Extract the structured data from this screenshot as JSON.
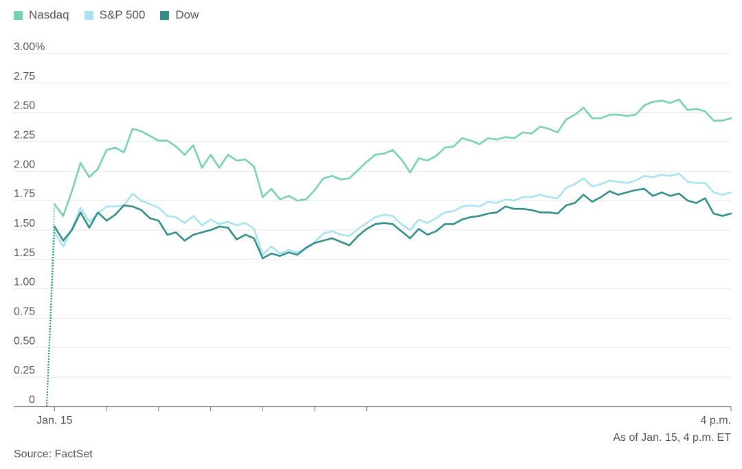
{
  "legend": [
    {
      "label": "Nasdaq",
      "color": "#78d2b2"
    },
    {
      "label": "S&P 500",
      "color": "#a8e2f3"
    },
    {
      "label": "Dow",
      "color": "#338e89"
    }
  ],
  "note": "As of Jan. 15, 4 p.m. ET",
  "source": "Source: FactSet",
  "chart_data": {
    "type": "line",
    "title": "",
    "xlabel": "",
    "ylabel": "",
    "x_tick_labels": [
      {
        "label": "Jan. 15",
        "x": 0
      },
      {
        "label": "",
        "x": 30
      },
      {
        "label": "",
        "x": 60
      },
      {
        "label": "",
        "x": 90
      },
      {
        "label": "",
        "x": 120
      },
      {
        "label": "",
        "x": 150
      },
      {
        "label": "",
        "x": 180
      },
      {
        "label": "4 p.m.",
        "x": 390
      }
    ],
    "y_tick_labels": [
      "0",
      "0.25",
      "0.50",
      "0.75",
      "1.00",
      "1.25",
      "1.50",
      "1.75",
      "2.00",
      "2.25",
      "2.50",
      "2.75",
      "3.00%"
    ],
    "ylim": [
      0,
      3.0
    ],
    "xlim": [
      -4.5,
      390
    ],
    "grid": true,
    "legend_position": "top-left",
    "baseline": {
      "x": [
        -4.5,
        0
      ],
      "values": [
        0,
        0
      ]
    },
    "series": [
      {
        "name": "Nasdaq",
        "color": "#78d2b2",
        "x": [
          -4.5,
          0,
          5,
          10,
          15,
          20,
          25,
          30,
          35,
          40,
          45,
          50,
          55,
          60,
          65,
          70,
          75,
          80,
          85,
          90,
          95,
          100,
          105,
          110,
          115,
          120,
          125,
          130,
          135,
          140,
          145,
          150,
          155,
          160,
          165,
          170,
          175,
          180,
          185,
          190,
          195,
          200,
          205,
          210,
          215,
          220,
          225,
          230,
          235,
          240,
          245,
          250,
          255,
          260,
          265,
          270,
          275,
          280,
          285,
          290,
          295,
          300,
          305,
          310,
          315,
          320,
          325,
          330,
          335,
          340,
          345,
          350,
          355,
          360,
          365,
          370,
          375,
          380,
          385,
          390
        ],
        "values": [
          0,
          1.72,
          1.62,
          1.83,
          2.07,
          1.95,
          2.02,
          2.18,
          2.2,
          2.16,
          2.36,
          2.34,
          2.3,
          2.26,
          2.26,
          2.21,
          2.14,
          2.22,
          2.03,
          2.14,
          2.03,
          2.14,
          2.09,
          2.1,
          2.04,
          1.78,
          1.85,
          1.76,
          1.79,
          1.75,
          1.76,
          1.84,
          1.94,
          1.96,
          1.93,
          1.94,
          2.01,
          2.08,
          2.14,
          2.15,
          2.18,
          2.1,
          1.99,
          2.11,
          2.09,
          2.13,
          2.2,
          2.21,
          2.28,
          2.26,
          2.23,
          2.28,
          2.27,
          2.29,
          2.28,
          2.33,
          2.32,
          2.38,
          2.36,
          2.33,
          2.44,
          2.48,
          2.54,
          2.45,
          2.45,
          2.48,
          2.48,
          2.47,
          2.48,
          2.56,
          2.59,
          2.6,
          2.58,
          2.61,
          2.52,
          2.53,
          2.51,
          2.43,
          2.43,
          2.45
        ]
      },
      {
        "name": "S&P 500",
        "color": "#a8e2f3",
        "x": [
          -4.5,
          0,
          5,
          10,
          15,
          20,
          25,
          30,
          35,
          40,
          45,
          50,
          55,
          60,
          65,
          70,
          75,
          80,
          85,
          90,
          95,
          100,
          105,
          110,
          115,
          120,
          125,
          130,
          135,
          140,
          145,
          150,
          155,
          160,
          165,
          170,
          175,
          180,
          185,
          190,
          195,
          200,
          205,
          210,
          215,
          220,
          225,
          230,
          235,
          240,
          245,
          250,
          255,
          260,
          265,
          270,
          275,
          280,
          285,
          290,
          295,
          300,
          305,
          310,
          315,
          320,
          325,
          330,
          335,
          340,
          345,
          350,
          355,
          360,
          365,
          370,
          375,
          380,
          385,
          390
        ],
        "values": [
          0,
          1.48,
          1.36,
          1.51,
          1.69,
          1.57,
          1.64,
          1.7,
          1.7,
          1.71,
          1.81,
          1.75,
          1.72,
          1.69,
          1.62,
          1.61,
          1.56,
          1.62,
          1.54,
          1.59,
          1.55,
          1.57,
          1.54,
          1.56,
          1.51,
          1.29,
          1.36,
          1.3,
          1.33,
          1.31,
          1.34,
          1.4,
          1.47,
          1.49,
          1.46,
          1.45,
          1.51,
          1.56,
          1.61,
          1.63,
          1.62,
          1.55,
          1.5,
          1.59,
          1.56,
          1.6,
          1.65,
          1.66,
          1.7,
          1.71,
          1.7,
          1.74,
          1.73,
          1.76,
          1.75,
          1.78,
          1.78,
          1.8,
          1.78,
          1.77,
          1.86,
          1.89,
          1.94,
          1.87,
          1.89,
          1.92,
          1.91,
          1.9,
          1.92,
          1.96,
          1.95,
          1.97,
          1.96,
          1.98,
          1.91,
          1.9,
          1.9,
          1.82,
          1.8,
          1.82
        ]
      },
      {
        "name": "Dow",
        "color": "#338e89",
        "x": [
          -4.5,
          0,
          5,
          10,
          15,
          20,
          25,
          30,
          35,
          40,
          45,
          50,
          55,
          60,
          65,
          70,
          75,
          80,
          85,
          90,
          95,
          100,
          105,
          110,
          115,
          120,
          125,
          130,
          135,
          140,
          145,
          150,
          155,
          160,
          165,
          170,
          175,
          180,
          185,
          190,
          195,
          200,
          205,
          210,
          215,
          220,
          225,
          230,
          235,
          240,
          245,
          250,
          255,
          260,
          265,
          270,
          275,
          280,
          285,
          290,
          295,
          300,
          305,
          310,
          315,
          320,
          325,
          330,
          335,
          340,
          345,
          350,
          355,
          360,
          365,
          370,
          375,
          380,
          385,
          390
        ],
        "values": [
          0,
          1.53,
          1.41,
          1.5,
          1.65,
          1.52,
          1.65,
          1.58,
          1.63,
          1.71,
          1.7,
          1.67,
          1.6,
          1.58,
          1.46,
          1.48,
          1.41,
          1.46,
          1.48,
          1.5,
          1.53,
          1.52,
          1.42,
          1.46,
          1.43,
          1.26,
          1.3,
          1.28,
          1.31,
          1.29,
          1.35,
          1.39,
          1.41,
          1.43,
          1.4,
          1.37,
          1.45,
          1.51,
          1.55,
          1.56,
          1.55,
          1.49,
          1.43,
          1.51,
          1.46,
          1.49,
          1.55,
          1.55,
          1.59,
          1.61,
          1.62,
          1.64,
          1.65,
          1.7,
          1.68,
          1.68,
          1.67,
          1.65,
          1.65,
          1.64,
          1.71,
          1.73,
          1.8,
          1.74,
          1.78,
          1.83,
          1.8,
          1.82,
          1.84,
          1.85,
          1.79,
          1.82,
          1.79,
          1.81,
          1.75,
          1.73,
          1.77,
          1.64,
          1.62,
          1.64
        ]
      }
    ]
  }
}
